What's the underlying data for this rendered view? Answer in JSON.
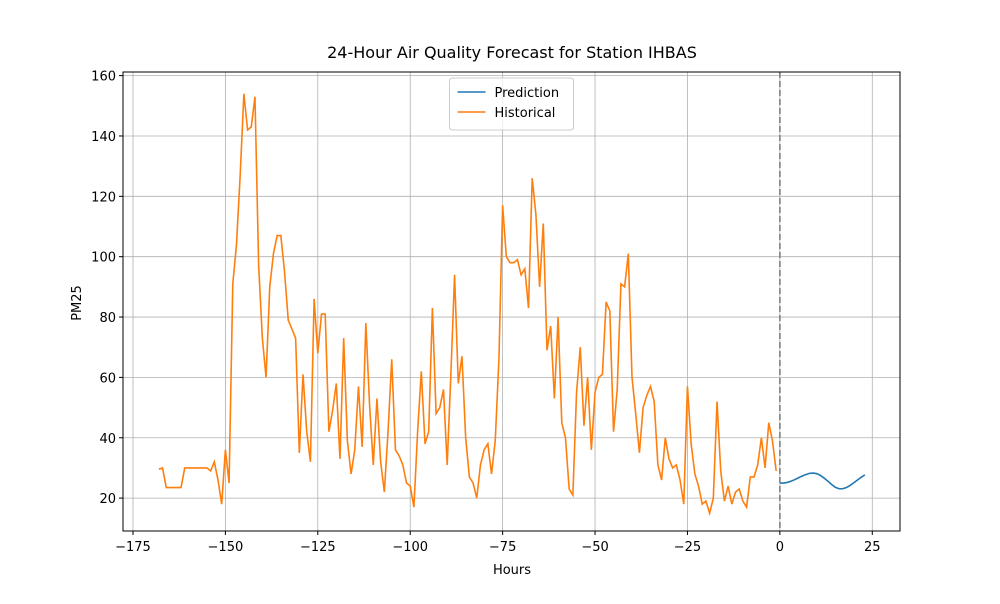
{
  "chart_data": {
    "type": "line",
    "title": "24-Hour Air Quality Forecast for Station IHBAS",
    "x_label": "Hours",
    "y_label": "PM25",
    "xlim": [
      -177.7,
      32.5
    ],
    "ylim": [
      9.1,
      161.2
    ],
    "xticks": [
      {
        "value": -175,
        "label": "−175"
      },
      {
        "value": -150,
        "label": "−150"
      },
      {
        "value": -125,
        "label": "−125"
      },
      {
        "value": -100,
        "label": "−100"
      },
      {
        "value": -75,
        "label": "−75"
      },
      {
        "value": -50,
        "label": "−50"
      },
      {
        "value": -25,
        "label": "−25"
      },
      0,
      25
    ],
    "yticks": [
      20,
      40,
      60,
      80,
      100,
      120,
      140,
      160
    ],
    "grid": true,
    "legend": "upper center",
    "vline": 0,
    "vline_color": "#808080",
    "series": [
      {
        "name": "Prediction",
        "color": "#1f77b4",
        "x": [
          0,
          1,
          2,
          3,
          4,
          5,
          6,
          7,
          8,
          9,
          10,
          11,
          12,
          13,
          14,
          15,
          16,
          17,
          18,
          19,
          20,
          21,
          22,
          23
        ],
        "values": [
          25,
          25,
          25.2,
          25.6,
          26.1,
          26.7,
          27.3,
          27.8,
          28.2,
          28.3,
          28.1,
          27.5,
          26.6,
          25.6,
          24.5,
          23.6,
          23.1,
          23.1,
          23.5,
          24.2,
          25.1,
          26,
          26.9,
          27.7
        ]
      },
      {
        "name": "Historical",
        "color": "#ff7f0e",
        "x": [
          -168,
          -167,
          -166,
          -165,
          -164,
          -163,
          -162,
          -161,
          -160,
          -159,
          -158,
          -157,
          -156,
          -155,
          -154,
          -153,
          -152,
          -151,
          -150,
          -149,
          -148,
          -147,
          -146,
          -145,
          -144,
          -143,
          -142,
          -141,
          -140,
          -139,
          -138,
          -137,
          -136,
          -135,
          -134,
          -133,
          -132,
          -131,
          -130,
          -129,
          -128,
          -127,
          -126,
          -125,
          -124,
          -123,
          -122,
          -121,
          -120,
          -119,
          -118,
          -117,
          -116,
          -115,
          -114,
          -113,
          -112,
          -111,
          -110,
          -109,
          -108,
          -107,
          -106,
          -105,
          -104,
          -103,
          -102,
          -101,
          -100,
          -99,
          -98,
          -97,
          -96,
          -95,
          -94,
          -93,
          -92,
          -91,
          -90,
          -89,
          -88,
          -87,
          -86,
          -85,
          -84,
          -83,
          -82,
          -81,
          -80,
          -79,
          -78,
          -77,
          -76,
          -75,
          -74,
          -73,
          -72,
          -71,
          -70,
          -69,
          -68,
          -67,
          -66,
          -65,
          -64,
          -63,
          -62,
          -61,
          -60,
          -59,
          -58,
          -57,
          -56,
          -55,
          -54,
          -53,
          -52,
          -51,
          -50,
          -49,
          -48,
          -47,
          -46,
          -45,
          -44,
          -43,
          -42,
          -41,
          -40,
          -39,
          -38,
          -37,
          -36,
          -35,
          -34,
          -33,
          -32,
          -31,
          -30,
          -29,
          -28,
          -27,
          -26,
          -25,
          -24,
          -23,
          -22,
          -21,
          -20,
          -19,
          -18,
          -17,
          -16,
          -15,
          -14,
          -13,
          -12,
          -11,
          -10,
          -9,
          -8,
          -7,
          -6,
          -5,
          -4,
          -3,
          -2,
          -1
        ],
        "values": [
          29.6,
          30,
          23.5,
          23.5,
          23.5,
          23.5,
          23.5,
          30,
          30,
          30,
          30,
          30,
          30,
          30,
          29,
          32,
          26,
          18,
          36,
          25,
          91,
          104,
          127,
          154,
          142,
          143,
          153,
          97,
          73,
          60,
          90,
          101,
          107,
          107,
          95,
          79,
          76,
          73,
          35,
          61,
          42,
          32,
          86,
          68,
          81,
          81,
          42,
          49,
          58,
          33,
          73,
          39,
          28,
          36,
          57,
          37,
          78,
          51,
          31,
          53,
          32,
          22,
          42,
          66,
          36,
          34,
          31,
          25,
          24,
          17,
          42,
          62,
          38,
          42,
          83,
          48,
          50,
          56,
          31,
          61,
          94,
          58,
          67,
          40,
          27,
          25,
          20,
          31,
          36,
          38,
          28,
          39,
          66,
          117,
          100,
          98,
          98,
          99,
          94,
          96,
          83,
          126,
          114,
          90,
          111,
          69,
          77,
          53,
          80,
          45,
          40,
          23,
          21,
          55,
          70,
          44,
          60,
          36,
          55,
          60,
          61,
          85,
          82,
          42,
          56,
          91,
          90,
          101,
          60,
          48,
          35,
          50,
          54,
          57,
          52,
          31,
          26,
          40,
          33,
          30,
          31,
          26,
          18,
          57,
          38,
          28,
          24,
          18,
          19,
          15,
          20,
          52,
          29,
          19,
          24,
          18,
          22,
          23,
          19,
          17,
          27,
          27,
          31,
          40,
          30,
          45,
          39,
          29
        ]
      }
    ]
  }
}
